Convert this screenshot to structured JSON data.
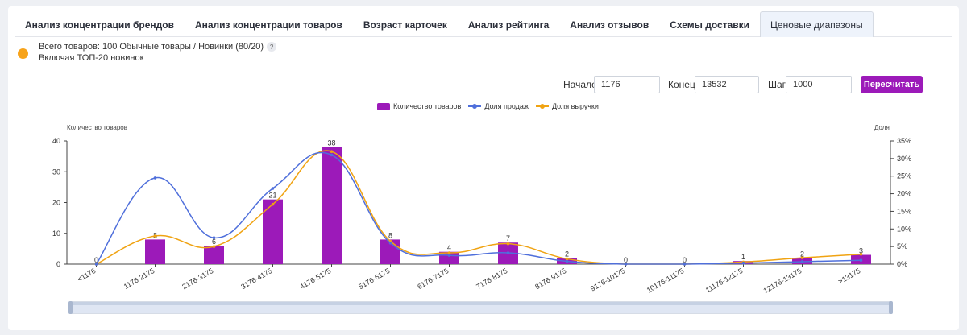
{
  "tabs": [
    {
      "label": "Анализ концентрации брендов",
      "active": false
    },
    {
      "label": "Анализ концентрации товаров",
      "active": false
    },
    {
      "label": "Возраст карточек",
      "active": false
    },
    {
      "label": "Анализ рейтинга",
      "active": false
    },
    {
      "label": "Анализ отзывов",
      "active": false
    },
    {
      "label": "Схемы доставки",
      "active": false
    },
    {
      "label": "Ценовые диапазоны",
      "active": true
    }
  ],
  "info": {
    "line1": "Всего товаров: 100 Обычные товары / Новинки (80/20)",
    "help_glyph": "?",
    "line2": "Включая ТОП-20 новинок"
  },
  "controls": {
    "start_label": "Начало",
    "start_value": "1176",
    "end_label": "Конец",
    "end_value": "13532",
    "step_label": "Шаг",
    "step_value": "1000",
    "recalc_label": "Пересчитать"
  },
  "colors": {
    "bar": "#9c1ab9",
    "sales": "#4f6fdb",
    "revenue": "#f0a312",
    "accent": "#9c1ab9"
  },
  "chart_data": {
    "type": "bar",
    "categories": [
      "<1176",
      "1176-2175",
      "2176-3175",
      "3176-4175",
      "4176-5175",
      "5176-6175",
      "6176-7175",
      "7176-8175",
      "8176-9175",
      "9176-10175",
      "10176-11175",
      "11176-12175",
      "12176-13175",
      ">13175"
    ],
    "ylabel": "Количество товаров",
    "y2label": "Доля",
    "ylim": [
      0,
      40
    ],
    "yticks": [
      0,
      10,
      20,
      30,
      40
    ],
    "y2lim": [
      0,
      35
    ],
    "y2ticks": [
      "0%",
      "5%",
      "10%",
      "15%",
      "20%",
      "25%",
      "30%",
      "35%"
    ],
    "grid": false,
    "legend_position": "top-center",
    "series": [
      {
        "name": "Количество товаров",
        "type": "bar",
        "axis": "left",
        "values": [
          0,
          8,
          6,
          21,
          38,
          8,
          4,
          7,
          2,
          0,
          0,
          1,
          2,
          3
        ]
      },
      {
        "name": "Доля продаж",
        "type": "line",
        "axis": "right",
        "unit": "%",
        "values": [
          0,
          24.5,
          7.5,
          21.5,
          31,
          6,
          2.5,
          3.2,
          0.8,
          0,
          0,
          0.3,
          0.7,
          1.1
        ]
      },
      {
        "name": "Доля выручки",
        "type": "line",
        "axis": "right",
        "unit": "%",
        "values": [
          0,
          8,
          5,
          17,
          32,
          6.5,
          3.2,
          5.8,
          1.5,
          0,
          0,
          0.6,
          1.8,
          2.8
        ]
      }
    ]
  }
}
